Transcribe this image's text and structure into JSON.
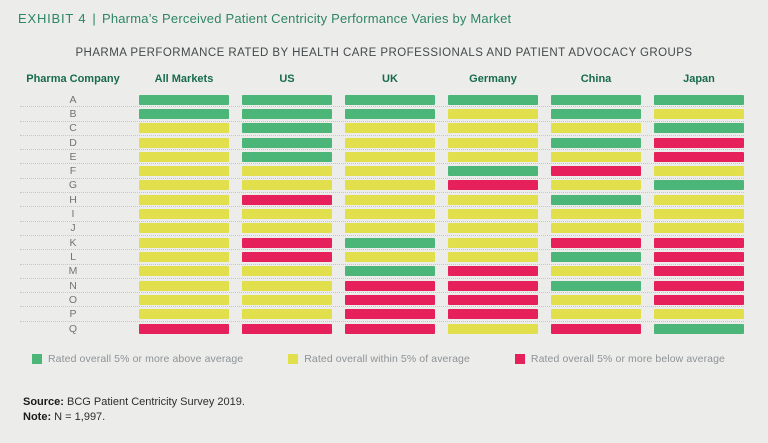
{
  "header": {
    "exhibit_label": "EXHIBIT 4",
    "separator": "|",
    "title": "Pharma’s Perceived Patient Centricity Performance Varies by Market"
  },
  "subtitle": "PHARMA PERFORMANCE RATED BY HEALTH CARE PROFESSIONALS AND PATIENT ADVOCACY GROUPS",
  "chart_data": {
    "type": "heatmap",
    "title": "Pharma’s Perceived Patient Centricity Performance Varies by Market",
    "subtitle": "PHARMA PERFORMANCE RATED BY HEALTH CARE PROFESSIONALS AND PATIENT ADVOCACY GROUPS",
    "row_header": "Pharma Company",
    "columns": [
      "All Markets",
      "US",
      "UK",
      "Germany",
      "China",
      "Japan"
    ],
    "rating_colors": {
      "above": "#4cb578",
      "within": "#e1df4c",
      "below": "#e6205a"
    },
    "rows": [
      {
        "company": "A",
        "ratings": [
          "above",
          "above",
          "above",
          "above",
          "above",
          "above"
        ]
      },
      {
        "company": "B",
        "ratings": [
          "above",
          "above",
          "above",
          "within",
          "above",
          "within"
        ]
      },
      {
        "company": "C",
        "ratings": [
          "within",
          "above",
          "within",
          "within",
          "within",
          "above"
        ]
      },
      {
        "company": "D",
        "ratings": [
          "within",
          "above",
          "within",
          "within",
          "above",
          "below"
        ]
      },
      {
        "company": "E",
        "ratings": [
          "within",
          "above",
          "within",
          "within",
          "within",
          "below"
        ]
      },
      {
        "company": "F",
        "ratings": [
          "within",
          "within",
          "within",
          "above",
          "below",
          "within"
        ]
      },
      {
        "company": "G",
        "ratings": [
          "within",
          "within",
          "within",
          "below",
          "within",
          "above"
        ]
      },
      {
        "company": "H",
        "ratings": [
          "within",
          "below",
          "within",
          "within",
          "above",
          "within"
        ]
      },
      {
        "company": "I",
        "ratings": [
          "within",
          "within",
          "within",
          "within",
          "within",
          "within"
        ]
      },
      {
        "company": "J",
        "ratings": [
          "within",
          "within",
          "within",
          "within",
          "within",
          "within"
        ]
      },
      {
        "company": "K",
        "ratings": [
          "within",
          "below",
          "above",
          "within",
          "below",
          "below"
        ]
      },
      {
        "company": "L",
        "ratings": [
          "within",
          "below",
          "within",
          "within",
          "above",
          "below"
        ]
      },
      {
        "company": "M",
        "ratings": [
          "within",
          "within",
          "above",
          "below",
          "within",
          "below"
        ]
      },
      {
        "company": "N",
        "ratings": [
          "within",
          "within",
          "below",
          "below",
          "above",
          "below"
        ]
      },
      {
        "company": "O",
        "ratings": [
          "within",
          "within",
          "below",
          "below",
          "within",
          "below"
        ]
      },
      {
        "company": "P",
        "ratings": [
          "within",
          "within",
          "below",
          "below",
          "within",
          "within"
        ]
      },
      {
        "company": "Q",
        "ratings": [
          "below",
          "below",
          "below",
          "within",
          "below",
          "above"
        ]
      }
    ],
    "legend": [
      {
        "key": "above",
        "label": "Rated overall 5% or more above average"
      },
      {
        "key": "within",
        "label": "Rated overall within 5% of average"
      },
      {
        "key": "below",
        "label": "Rated overall 5% or more below average"
      }
    ],
    "legend_position": "bottom",
    "grid": "dotted-row-separators"
  },
  "footer": {
    "source_label": "Source:",
    "source_text": "BCG Patient Centricity Survey 2019.",
    "note_label": "Note:",
    "note_text": "N = 1,997."
  }
}
